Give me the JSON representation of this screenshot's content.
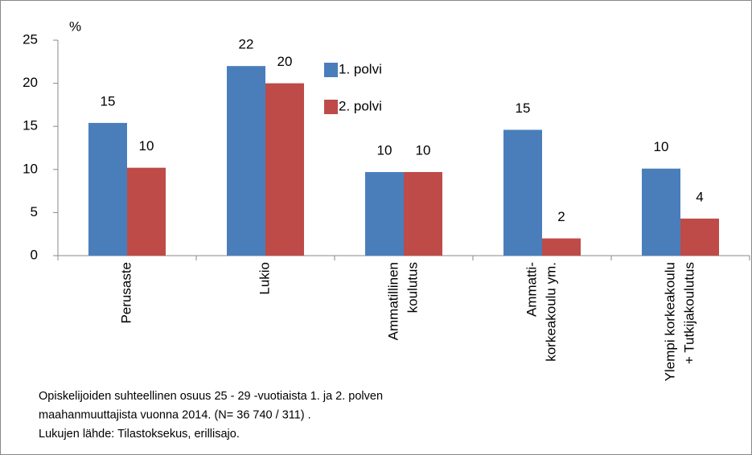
{
  "chart_data": {
    "type": "bar",
    "y_label": "%",
    "categories": [
      [
        "Perusaste"
      ],
      [
        "Lukio"
      ],
      [
        "Ammatillinen",
        "koulutus"
      ],
      [
        "Ammatti-",
        "korkeakoulu ym."
      ],
      [
        "Ylempi korkeakoulu",
        "+ Tutkijakoulutus"
      ]
    ],
    "series": [
      {
        "name": "1. polvi",
        "color": "#4a7ebb",
        "values": [
          15.4,
          22,
          9.7,
          14.6,
          10.1
        ],
        "value_labels": [
          "15",
          "22",
          "10",
          "15",
          "10"
        ]
      },
      {
        "name": "2. polvi",
        "color": "#be4b48",
        "values": [
          10.2,
          20,
          9.7,
          2,
          4.3
        ],
        "value_labels": [
          "10",
          "20",
          "10",
          "2",
          "4"
        ]
      }
    ],
    "ylim": [
      0,
      25
    ],
    "yticks": [
      0,
      5,
      10,
      15,
      20,
      25
    ],
    "notes": [
      "Opiskelijoiden suhteellinen osuus 25 - 29 -vuotiaista 1. ja 2. polven",
      "maahanmuuttajista vuonna 2014. (N= 36 740 / 311) .",
      "Lukujen lähde: Tilastoksekus, erillisajo."
    ]
  }
}
